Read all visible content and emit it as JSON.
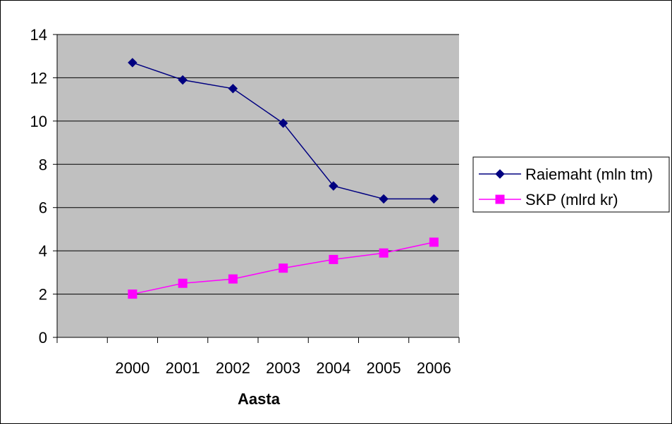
{
  "chart_data": {
    "type": "line",
    "categories": [
      "2000",
      "2001",
      "2002",
      "2003",
      "2004",
      "2005",
      "2006"
    ],
    "xlabel": "Aasta",
    "ylabel": "",
    "ylim": [
      0,
      14
    ],
    "yticks": [
      0,
      2,
      4,
      6,
      8,
      10,
      12,
      14
    ],
    "grid": true,
    "legend_position": "right",
    "plot_background": "#c0c0c0",
    "series": [
      {
        "name": "Raiemaht (mln tm)",
        "color": "#000080",
        "marker": "diamond",
        "values": [
          12.7,
          11.9,
          11.5,
          9.9,
          7.0,
          6.4,
          6.4
        ]
      },
      {
        "name": "SKP (mlrd kr)",
        "color": "#ff00ff",
        "marker": "square",
        "values": [
          2.0,
          2.5,
          2.7,
          3.2,
          3.6,
          3.9,
          4.4
        ]
      }
    ]
  }
}
